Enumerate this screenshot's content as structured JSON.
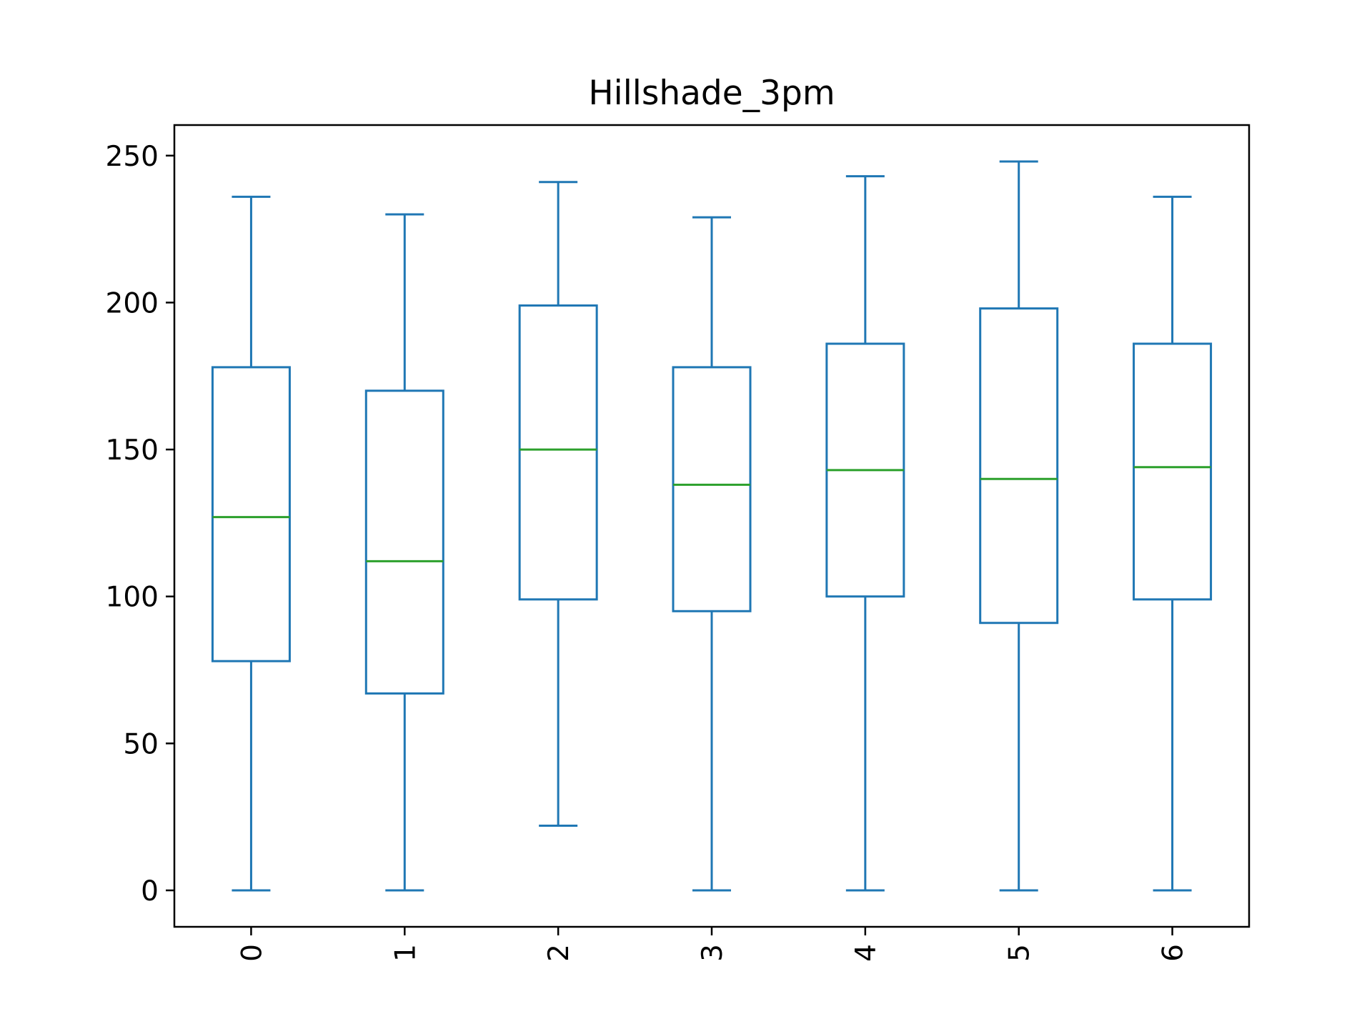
{
  "chart_data": {
    "type": "box",
    "title": "Hillshade_3pm",
    "xlabel": "",
    "ylabel": "",
    "categories": [
      "0",
      "1",
      "2",
      "3",
      "4",
      "5",
      "6"
    ],
    "boxes": [
      {
        "label": "0",
        "whisker_low": 0,
        "q1": 78,
        "median": 127,
        "q3": 178,
        "whisker_high": 236
      },
      {
        "label": "1",
        "whisker_low": 0,
        "q1": 67,
        "median": 112,
        "q3": 170,
        "whisker_high": 230
      },
      {
        "label": "2",
        "whisker_low": 22,
        "q1": 99,
        "median": 150,
        "q3": 199,
        "whisker_high": 241
      },
      {
        "label": "3",
        "whisker_low": 0,
        "q1": 95,
        "median": 138,
        "q3": 178,
        "whisker_high": 229
      },
      {
        "label": "4",
        "whisker_low": 0,
        "q1": 100,
        "median": 143,
        "q3": 186,
        "whisker_high": 243
      },
      {
        "label": "5",
        "whisker_low": 0,
        "q1": 91,
        "median": 140,
        "q3": 198,
        "whisker_high": 248
      },
      {
        "label": "6",
        "whisker_low": 0,
        "q1": 99,
        "median": 144,
        "q3": 186,
        "whisker_high": 236
      }
    ],
    "yticks": [
      "0",
      "50",
      "100",
      "150",
      "200",
      "250"
    ],
    "ylim": [
      -12.4,
      260.4
    ],
    "grid": false,
    "legend": "none",
    "x_tick_rotation": "vertical",
    "colors": {
      "box": "#1f77b4",
      "median": "#2ca02c",
      "axes": "#000000"
    }
  }
}
